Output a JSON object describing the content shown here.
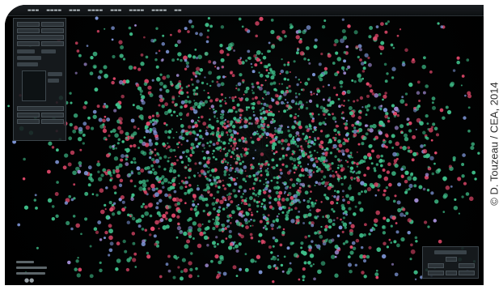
{
  "credit": "© D. Touzeau / CEA, 2014",
  "colors": {
    "particle_green": "#3fbf8a",
    "particle_red": "#e0486a",
    "particle_blue": "#7f97d8",
    "particle_lavender": "#a58fd8",
    "background": "#000000",
    "frame": "#ffffff"
  },
  "icons": {
    "bottom_left": "visibility-icon"
  }
}
